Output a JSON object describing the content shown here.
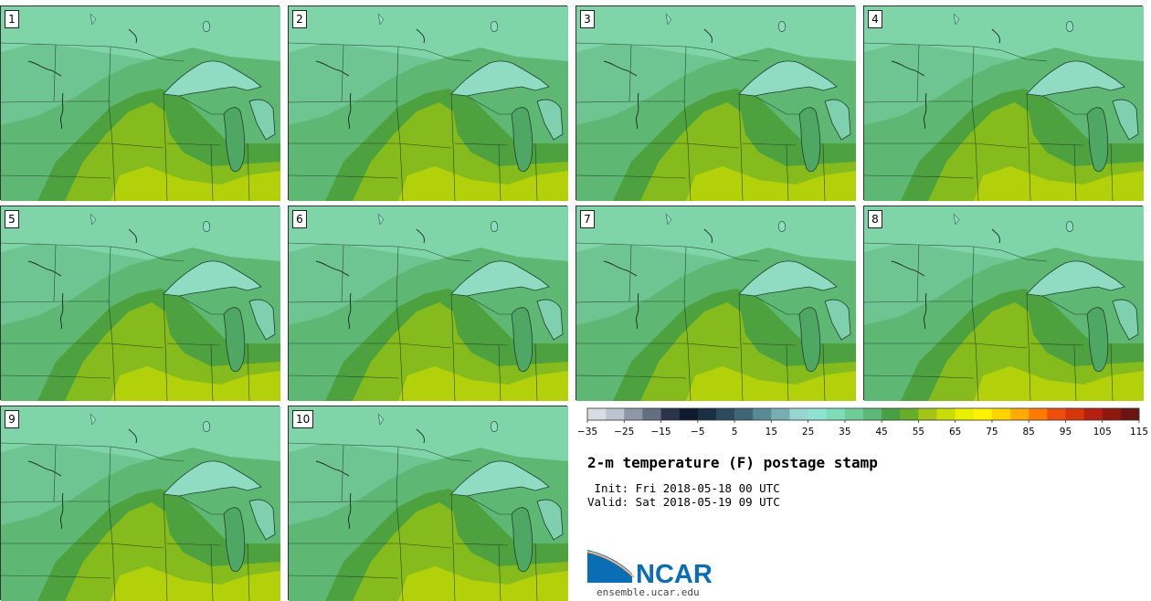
{
  "panels": [
    {
      "label": "1"
    },
    {
      "label": "2"
    },
    {
      "label": "3"
    },
    {
      "label": "4"
    },
    {
      "label": "5"
    },
    {
      "label": "6"
    },
    {
      "label": "7"
    },
    {
      "label": "8"
    },
    {
      "label": "9"
    },
    {
      "label": "10"
    }
  ],
  "colorbar": {
    "colors": [
      "#d8dde3",
      "#bcc4cf",
      "#8d97a6",
      "#636e80",
      "#2b3448",
      "#0f1a2e",
      "#1a2f44",
      "#2d4b5e",
      "#3f6676",
      "#5a8a96",
      "#78aeb2",
      "#98d4d0",
      "#8ee4d0",
      "#7fdcb8",
      "#6fcb98",
      "#5cb879",
      "#48a045",
      "#66ad2b",
      "#a4c417",
      "#c9dc06",
      "#eaef02",
      "#fff200",
      "#ffd400",
      "#ffab00",
      "#ff7a00",
      "#ee4e0c",
      "#d7360d",
      "#b42110",
      "#8f1811",
      "#6b1512"
    ],
    "tick_labels": [
      "−35",
      "−25",
      "−15",
      "−5",
      "5",
      "15",
      "25",
      "35",
      "45",
      "55",
      "65",
      "75",
      "85",
      "95",
      "105",
      "115"
    ]
  },
  "title": "2-m temperature (F) postage stamp",
  "init_line": " Init: Fri 2018-05-18 00 UTC",
  "valid_line": "Valid: Sat 2018-05-19 09 UTC",
  "logo": {
    "text": "NCAR",
    "url": "ensemble.ucar.edu",
    "brand_color": "#0a6eb4"
  }
}
